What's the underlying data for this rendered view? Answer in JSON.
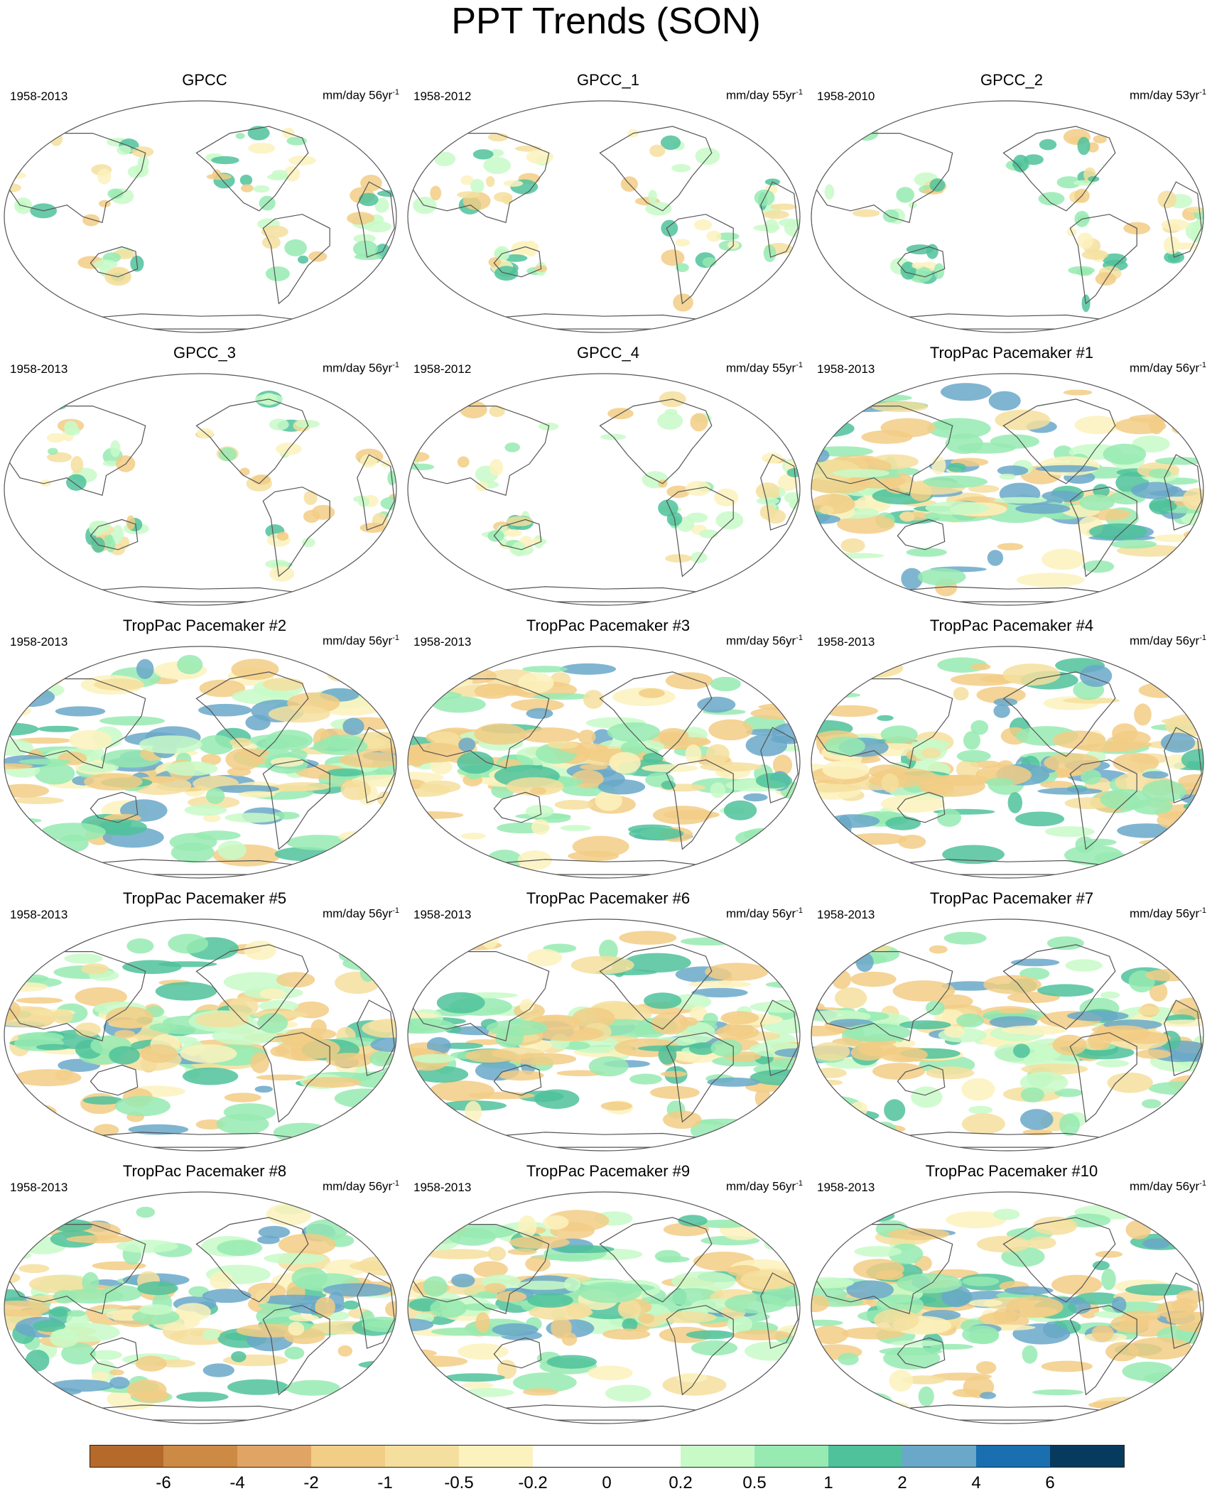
{
  "figure": {
    "title": "PPT Trends (SON)"
  },
  "panels": [
    {
      "title": "GPCC",
      "years": "1958-2013",
      "units": "mm/day",
      "period": "56yr",
      "exponent": "-1",
      "kind": "obs"
    },
    {
      "title": "GPCC_1",
      "years": "1958-2012",
      "units": "mm/day",
      "period": "55yr",
      "exponent": "-1",
      "kind": "obs"
    },
    {
      "title": "GPCC_2",
      "years": "1958-2010",
      "units": "mm/day",
      "period": "53yr",
      "exponent": "-1",
      "kind": "obs"
    },
    {
      "title": "GPCC_3",
      "years": "1958-2013",
      "units": "mm/day",
      "period": "56yr",
      "exponent": "-1",
      "kind": "obs"
    },
    {
      "title": "GPCC_4",
      "years": "1958-2012",
      "units": "mm/day",
      "period": "55yr",
      "exponent": "-1",
      "kind": "obs"
    },
    {
      "title": "TropPac Pacemaker #1",
      "years": "1958-2013",
      "units": "mm/day",
      "period": "56yr",
      "exponent": "-1",
      "kind": "model"
    },
    {
      "title": "TropPac Pacemaker #2",
      "years": "1958-2013",
      "units": "mm/day",
      "period": "56yr",
      "exponent": "-1",
      "kind": "model"
    },
    {
      "title": "TropPac Pacemaker #3",
      "years": "1958-2013",
      "units": "mm/day",
      "period": "56yr",
      "exponent": "-1",
      "kind": "model"
    },
    {
      "title": "TropPac Pacemaker #4",
      "years": "1958-2013",
      "units": "mm/day",
      "period": "56yr",
      "exponent": "-1",
      "kind": "model"
    },
    {
      "title": "TropPac Pacemaker #5",
      "years": "1958-2013",
      "units": "mm/day",
      "period": "56yr",
      "exponent": "-1",
      "kind": "model"
    },
    {
      "title": "TropPac Pacemaker #6",
      "years": "1958-2013",
      "units": "mm/day",
      "period": "56yr",
      "exponent": "-1",
      "kind": "model"
    },
    {
      "title": "TropPac Pacemaker #7",
      "years": "1958-2013",
      "units": "mm/day",
      "period": "56yr",
      "exponent": "-1",
      "kind": "model"
    },
    {
      "title": "TropPac Pacemaker #8",
      "years": "1958-2013",
      "units": "mm/day",
      "period": "56yr",
      "exponent": "-1",
      "kind": "model"
    },
    {
      "title": "TropPac Pacemaker #9",
      "years": "1958-2013",
      "units": "mm/day",
      "period": "56yr",
      "exponent": "-1",
      "kind": "model"
    },
    {
      "title": "TropPac Pacemaker #10",
      "years": "1958-2013",
      "units": "mm/day",
      "period": "56yr",
      "exponent": "-1",
      "kind": "model"
    }
  ],
  "colorbar": {
    "colors": [
      "#b5692b",
      "#cc8a45",
      "#e0a565",
      "#f2cd85",
      "#f5df9e",
      "#fcf2bd",
      "#ffffff",
      "#ffffff",
      "#c8fac8",
      "#96eab2",
      "#4fc29b",
      "#6aa8c9",
      "#1a6fb0",
      "#073b5e"
    ],
    "labels": [
      "-6",
      "-4",
      "-2",
      "-1",
      "-0.5",
      "-0.2",
      "0",
      "0.2",
      "0.5",
      "1",
      "2",
      "4",
      "6"
    ]
  },
  "colors": {
    "outline": "#555555",
    "coast": "#555555"
  }
}
